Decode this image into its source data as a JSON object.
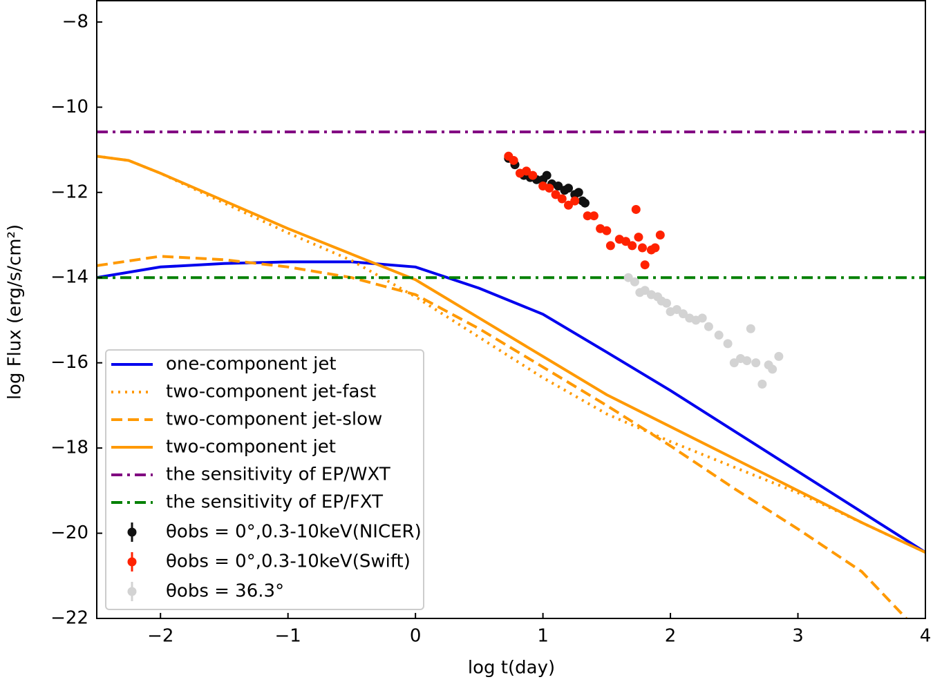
{
  "chart_data": {
    "type": "line",
    "x_label": "log t(day)",
    "y_label": "log Flux (erg/s/cm²)",
    "xlim": [
      -2.5,
      4
    ],
    "ylim": [
      -22,
      -7.5
    ],
    "xticks": [
      {
        "value": -2,
        "label": "−2"
      },
      {
        "value": -1,
        "label": "−1"
      },
      0,
      1,
      2,
      3,
      4
    ],
    "yticks": [
      {
        "value": -8,
        "label": "−8"
      },
      {
        "value": -10,
        "label": "−10"
      },
      {
        "value": -12,
        "label": "−12"
      },
      {
        "value": -14,
        "label": "−14"
      },
      {
        "value": -16,
        "label": "−16"
      },
      {
        "value": -18,
        "label": "−18"
      },
      {
        "value": -20,
        "label": "−20"
      },
      {
        "value": -22,
        "label": "−22"
      }
    ],
    "legend": "lower left",
    "series": [
      {
        "name": "one-component jet",
        "color": "#0000ee",
        "style": "solid",
        "x": [
          -2.5,
          -2,
          -1.5,
          -1,
          -0.5,
          0,
          0.5,
          1,
          1.5,
          2,
          2.5,
          3,
          3.5,
          4
        ],
        "values": [
          -14.0,
          -13.75,
          -13.67,
          -13.63,
          -13.63,
          -13.75,
          -14.25,
          -14.86,
          -15.75,
          -16.65,
          -17.6,
          -18.55,
          -19.5,
          -20.45
        ]
      },
      {
        "name": "two-component jet-fast",
        "color": "#ff9900",
        "style": "dotted",
        "x": [
          -2.5,
          -2.25,
          -2,
          -1.5,
          -1,
          -0.5,
          0,
          0.5,
          1,
          1.5,
          2,
          2.5,
          3,
          3.5,
          4
        ],
        "values": [
          -11.15,
          -11.25,
          -11.55,
          -12.25,
          -12.95,
          -13.6,
          -14.45,
          -15.4,
          -16.35,
          -17.2,
          -17.85,
          -18.45,
          -19.05,
          -19.75,
          -20.45
        ]
      },
      {
        "name": "two-component jet-slow",
        "color": "#ff9900",
        "style": "dashed",
        "x": [
          -2.5,
          -2,
          -1.5,
          -1,
          -0.5,
          0,
          0.5,
          1,
          1.5,
          2,
          2.5,
          3,
          3.5,
          3.85
        ],
        "values": [
          -13.72,
          -13.5,
          -13.58,
          -13.75,
          -14.0,
          -14.4,
          -15.2,
          -16.1,
          -17.0,
          -17.95,
          -18.95,
          -19.9,
          -20.9,
          -22.0
        ]
      },
      {
        "name": "two-component jet",
        "color": "#ff9900",
        "style": "solid",
        "x": [
          -2.5,
          -2.25,
          -2,
          -1.5,
          -1,
          -0.5,
          0,
          0.5,
          1,
          1.5,
          2,
          2.5,
          3,
          3.5,
          4
        ],
        "values": [
          -11.15,
          -11.25,
          -11.55,
          -12.2,
          -12.85,
          -13.45,
          -14.05,
          -14.95,
          -15.85,
          -16.75,
          -17.5,
          -18.25,
          -19.0,
          -19.75,
          -20.45
        ]
      },
      {
        "name": "the sensitivity of EP/WXT",
        "color": "#800080",
        "style": "dashdot",
        "x": [
          -2.5,
          4
        ],
        "values": [
          -10.58,
          -10.58
        ]
      },
      {
        "name": "the sensitivity of EP/FXT",
        "color": "#008000",
        "style": "dashdot",
        "x": [
          -2.5,
          4
        ],
        "values": [
          -14.0,
          -14.0
        ]
      },
      {
        "name": "θobs = 0°,0.3-10keV(NICER)",
        "color": "#111111",
        "style": "points",
        "x": [
          0.73,
          0.78,
          0.85,
          0.9,
          0.95,
          1.0,
          1.03,
          1.07,
          1.12,
          1.17,
          1.2,
          1.25,
          1.28,
          1.31,
          1.33
        ],
        "values": [
          -11.2,
          -11.35,
          -11.6,
          -11.65,
          -11.7,
          -11.7,
          -11.6,
          -11.8,
          -11.85,
          -11.95,
          -11.9,
          -12.05,
          -12.0,
          -12.2,
          -12.25
        ]
      },
      {
        "name": "θobs = 0°,0.3-10keV(Swift)",
        "color": "#ff2200",
        "style": "points",
        "x": [
          0.73,
          0.77,
          0.82,
          0.87,
          0.92,
          1.0,
          1.05,
          1.1,
          1.15,
          1.2,
          1.25,
          1.35,
          1.4,
          1.45,
          1.5,
          1.53,
          1.6,
          1.65,
          1.7,
          1.73,
          1.75,
          1.78,
          1.8,
          1.85,
          1.88,
          1.92
        ],
        "values": [
          -11.15,
          -11.25,
          -11.55,
          -11.5,
          -11.6,
          -11.85,
          -11.9,
          -12.05,
          -12.15,
          -12.3,
          -12.2,
          -12.55,
          -12.55,
          -12.85,
          -12.9,
          -13.25,
          -13.1,
          -13.15,
          -13.25,
          -12.4,
          -13.05,
          -13.3,
          -13.7,
          -13.35,
          -13.3,
          -13.0
        ]
      },
      {
        "name": "θobs = 36.3°",
        "color": "#d3d3d3",
        "style": "points",
        "x": [
          1.67,
          1.72,
          1.76,
          1.8,
          1.85,
          1.9,
          1.93,
          1.97,
          2.0,
          2.05,
          2.1,
          2.15,
          2.2,
          2.25,
          2.3,
          2.38,
          2.45,
          2.5,
          2.55,
          2.6,
          2.63,
          2.67,
          2.72,
          2.77,
          2.8,
          2.85
        ],
        "values": [
          -14.0,
          -14.1,
          -14.35,
          -14.3,
          -14.4,
          -14.45,
          -14.55,
          -14.6,
          -14.8,
          -14.75,
          -14.85,
          -14.95,
          -15.0,
          -14.95,
          -15.15,
          -15.35,
          -15.55,
          -16.0,
          -15.9,
          -15.95,
          -15.2,
          -16.0,
          -16.5,
          -16.05,
          -16.15,
          -15.85
        ]
      }
    ]
  }
}
